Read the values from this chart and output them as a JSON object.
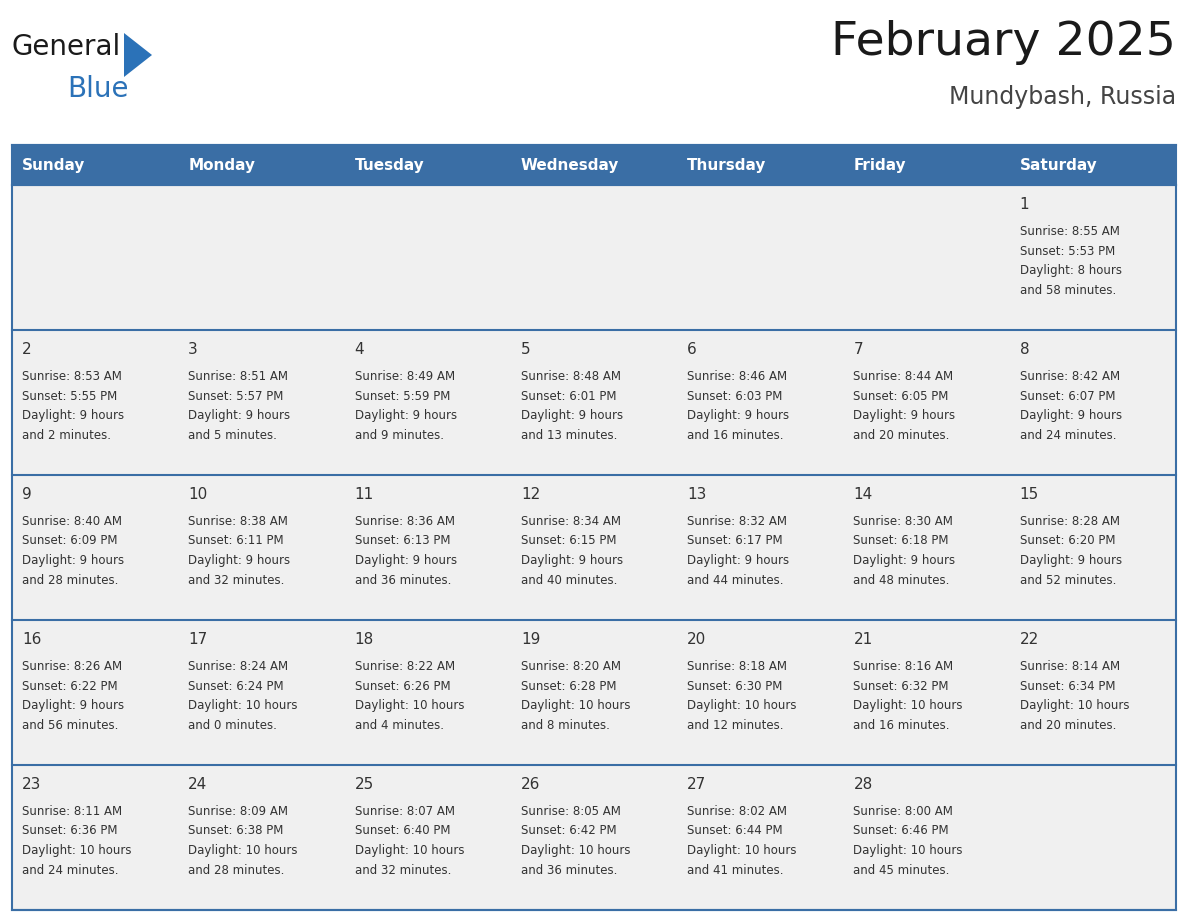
{
  "title": "February 2025",
  "subtitle": "Mundybash, Russia",
  "header_bg": "#3a6ea5",
  "header_text": "#ffffff",
  "cell_bg": "#f0f0f0",
  "day_number_color": "#333333",
  "text_color": "#333333",
  "line_color": "#3a6ea5",
  "logo_general_color": "#1a1a1a",
  "logo_blue_color": "#2b72b8",
  "logo_triangle_color": "#2b72b8",
  "days_of_week": [
    "Sunday",
    "Monday",
    "Tuesday",
    "Wednesday",
    "Thursday",
    "Friday",
    "Saturday"
  ],
  "weeks": [
    [
      {
        "day": null,
        "sunrise": null,
        "sunset": null,
        "daylight": null
      },
      {
        "day": null,
        "sunrise": null,
        "sunset": null,
        "daylight": null
      },
      {
        "day": null,
        "sunrise": null,
        "sunset": null,
        "daylight": null
      },
      {
        "day": null,
        "sunrise": null,
        "sunset": null,
        "daylight": null
      },
      {
        "day": null,
        "sunrise": null,
        "sunset": null,
        "daylight": null
      },
      {
        "day": null,
        "sunrise": null,
        "sunset": null,
        "daylight": null
      },
      {
        "day": 1,
        "sunrise": "8:55 AM",
        "sunset": "5:53 PM",
        "daylight": "8 hours\nand 58 minutes."
      }
    ],
    [
      {
        "day": 2,
        "sunrise": "8:53 AM",
        "sunset": "5:55 PM",
        "daylight": "9 hours\nand 2 minutes."
      },
      {
        "day": 3,
        "sunrise": "8:51 AM",
        "sunset": "5:57 PM",
        "daylight": "9 hours\nand 5 minutes."
      },
      {
        "day": 4,
        "sunrise": "8:49 AM",
        "sunset": "5:59 PM",
        "daylight": "9 hours\nand 9 minutes."
      },
      {
        "day": 5,
        "sunrise": "8:48 AM",
        "sunset": "6:01 PM",
        "daylight": "9 hours\nand 13 minutes."
      },
      {
        "day": 6,
        "sunrise": "8:46 AM",
        "sunset": "6:03 PM",
        "daylight": "9 hours\nand 16 minutes."
      },
      {
        "day": 7,
        "sunrise": "8:44 AM",
        "sunset": "6:05 PM",
        "daylight": "9 hours\nand 20 minutes."
      },
      {
        "day": 8,
        "sunrise": "8:42 AM",
        "sunset": "6:07 PM",
        "daylight": "9 hours\nand 24 minutes."
      }
    ],
    [
      {
        "day": 9,
        "sunrise": "8:40 AM",
        "sunset": "6:09 PM",
        "daylight": "9 hours\nand 28 minutes."
      },
      {
        "day": 10,
        "sunrise": "8:38 AM",
        "sunset": "6:11 PM",
        "daylight": "9 hours\nand 32 minutes."
      },
      {
        "day": 11,
        "sunrise": "8:36 AM",
        "sunset": "6:13 PM",
        "daylight": "9 hours\nand 36 minutes."
      },
      {
        "day": 12,
        "sunrise": "8:34 AM",
        "sunset": "6:15 PM",
        "daylight": "9 hours\nand 40 minutes."
      },
      {
        "day": 13,
        "sunrise": "8:32 AM",
        "sunset": "6:17 PM",
        "daylight": "9 hours\nand 44 minutes."
      },
      {
        "day": 14,
        "sunrise": "8:30 AM",
        "sunset": "6:18 PM",
        "daylight": "9 hours\nand 48 minutes."
      },
      {
        "day": 15,
        "sunrise": "8:28 AM",
        "sunset": "6:20 PM",
        "daylight": "9 hours\nand 52 minutes."
      }
    ],
    [
      {
        "day": 16,
        "sunrise": "8:26 AM",
        "sunset": "6:22 PM",
        "daylight": "9 hours\nand 56 minutes."
      },
      {
        "day": 17,
        "sunrise": "8:24 AM",
        "sunset": "6:24 PM",
        "daylight": "10 hours\nand 0 minutes."
      },
      {
        "day": 18,
        "sunrise": "8:22 AM",
        "sunset": "6:26 PM",
        "daylight": "10 hours\nand 4 minutes."
      },
      {
        "day": 19,
        "sunrise": "8:20 AM",
        "sunset": "6:28 PM",
        "daylight": "10 hours\nand 8 minutes."
      },
      {
        "day": 20,
        "sunrise": "8:18 AM",
        "sunset": "6:30 PM",
        "daylight": "10 hours\nand 12 minutes."
      },
      {
        "day": 21,
        "sunrise": "8:16 AM",
        "sunset": "6:32 PM",
        "daylight": "10 hours\nand 16 minutes."
      },
      {
        "day": 22,
        "sunrise": "8:14 AM",
        "sunset": "6:34 PM",
        "daylight": "10 hours\nand 20 minutes."
      }
    ],
    [
      {
        "day": 23,
        "sunrise": "8:11 AM",
        "sunset": "6:36 PM",
        "daylight": "10 hours\nand 24 minutes."
      },
      {
        "day": 24,
        "sunrise": "8:09 AM",
        "sunset": "6:38 PM",
        "daylight": "10 hours\nand 28 minutes."
      },
      {
        "day": 25,
        "sunrise": "8:07 AM",
        "sunset": "6:40 PM",
        "daylight": "10 hours\nand 32 minutes."
      },
      {
        "day": 26,
        "sunrise": "8:05 AM",
        "sunset": "6:42 PM",
        "daylight": "10 hours\nand 36 minutes."
      },
      {
        "day": 27,
        "sunrise": "8:02 AM",
        "sunset": "6:44 PM",
        "daylight": "10 hours\nand 41 minutes."
      },
      {
        "day": 28,
        "sunrise": "8:00 AM",
        "sunset": "6:46 PM",
        "daylight": "10 hours\nand 45 minutes."
      },
      {
        "day": null,
        "sunrise": null,
        "sunset": null,
        "daylight": null
      }
    ]
  ]
}
